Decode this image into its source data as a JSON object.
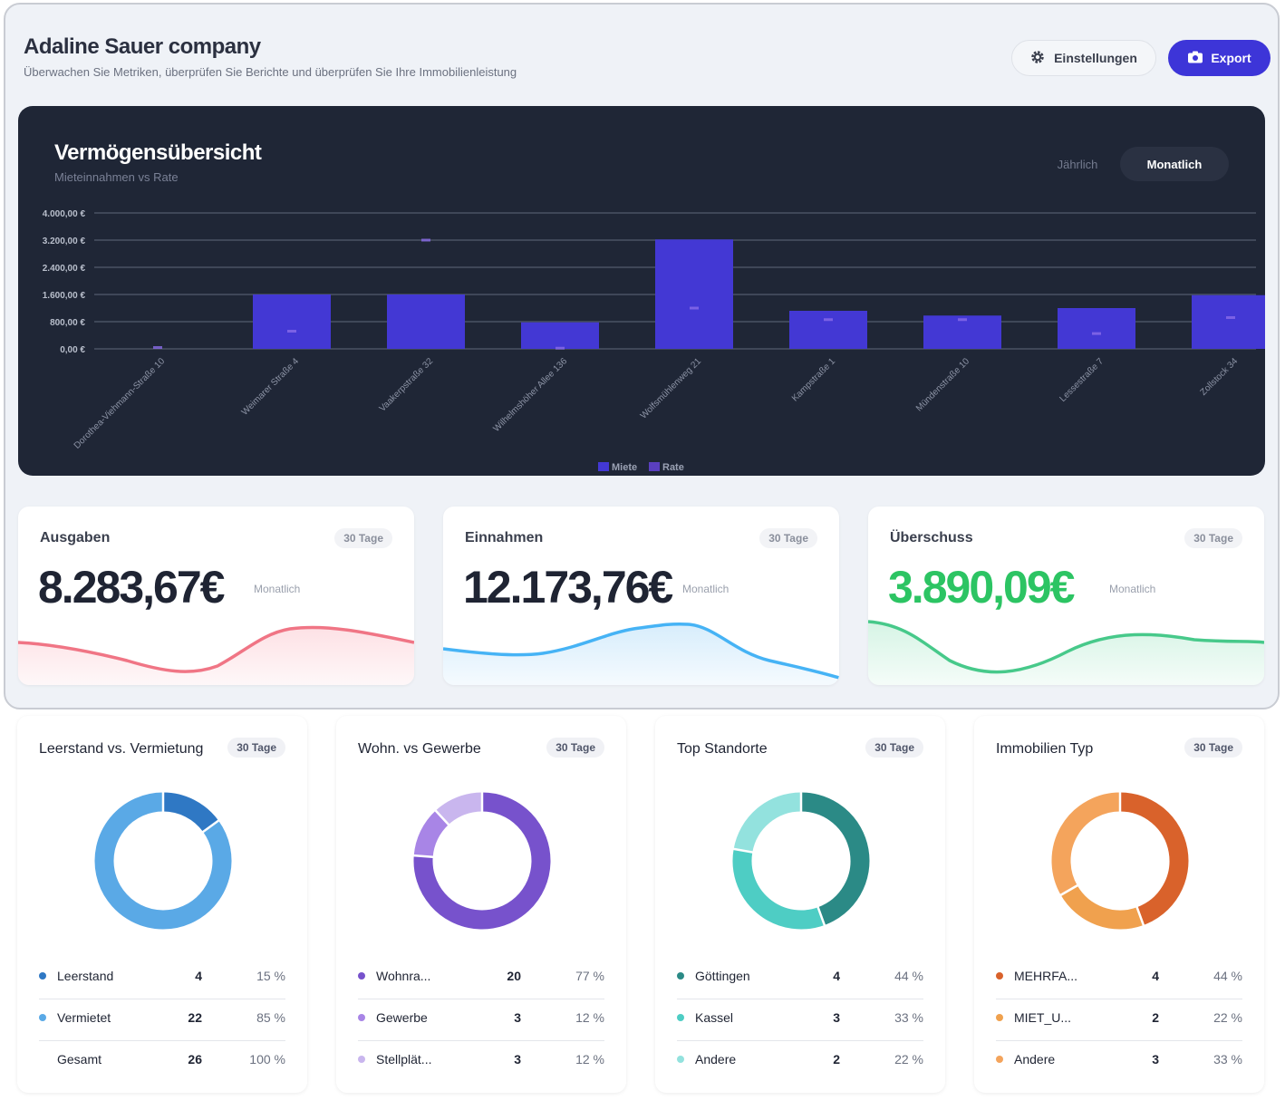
{
  "header": {
    "title": "Adaline Sauer company",
    "subtitle": "Überwachen Sie Metriken, überprüfen Sie Berichte und überprüfen Sie Ihre Immobilienleistung",
    "settings_label": "Einstellungen",
    "export_label": "Export"
  },
  "overview": {
    "title": "Vermögensübersicht",
    "subtitle": "Mieteinnahmen vs Rate",
    "tab_year": "Jährlich",
    "tab_month": "Monatlich"
  },
  "chart_data": {
    "type": "bar",
    "title": "Vermögensübersicht",
    "subtitle": "Mieteinnahmen vs Rate",
    "categories": [
      "Dorothea-Viehmann-Straße 10",
      "Weimarer Straße 4",
      "Vaakerpstraße 32",
      "Wilhelmshöher Allee 136",
      "Wolfsmühlenweg 21",
      "Kampstraße 1",
      "Mündenstraße 10",
      "Lessestraße 7",
      "Zollstock 34"
    ],
    "series": [
      {
        "name": "Miete",
        "color": "#4338d4",
        "values": [
          0,
          1600,
          1600,
          780,
          3220,
          1120,
          980,
          1200,
          1580
        ]
      },
      {
        "name": "Rate",
        "color": "#5a3fc0",
        "values": [
          40,
          520,
          3200,
          20,
          1200,
          860,
          860,
          450,
          920
        ]
      }
    ],
    "ytick_labels": [
      "0,00 €",
      "800,00 €",
      "1.600,00 €",
      "2.400,00 €",
      "3.200,00 €",
      "4.000,00 €"
    ],
    "ylim": [
      0,
      4000
    ],
    "legend": "bottom-center"
  },
  "stats": [
    {
      "label": "Ausgaben",
      "badge": "30 Tage",
      "value": "8.283,67€",
      "period": "Monatlich",
      "color": "#1f2433",
      "line_color": "#f07585",
      "fill_color": "#fde1e5"
    },
    {
      "label": "Einnahmen",
      "badge": "30 Tage",
      "value": "12.173,76€",
      "period": "Monatlich",
      "color": "#1f2433",
      "line_color": "#46b3f5",
      "fill_color": "#d7edfc"
    },
    {
      "label": "Überschuss",
      "badge": "30 Tage",
      "value": "3.890,09€",
      "period": "Monatlich",
      "color": "#2cc463",
      "line_color": "#47c98a",
      "fill_color": "#d6f4e5"
    }
  ],
  "donuts": [
    {
      "title": "Leerstand vs. Vermietung",
      "badge": "30 Tage",
      "rows": [
        {
          "name": "Leerstand",
          "count": "4",
          "pct": "15 %",
          "value": 15,
          "color": "#2f78c4"
        },
        {
          "name": "Vermietet",
          "count": "22",
          "pct": "85 %",
          "value": 85,
          "color": "#5aa9e6"
        },
        {
          "name": "Gesamt",
          "count": "26",
          "pct": "100 %",
          "value": 0,
          "color": ""
        }
      ]
    },
    {
      "title": "Wohn. vs Gewerbe",
      "badge": "30 Tage",
      "rows": [
        {
          "name": "Wohnra...",
          "count": "20",
          "pct": "77 %",
          "value": 77,
          "color": "#7752cc"
        },
        {
          "name": "Gewerbe",
          "count": "3",
          "pct": "12 %",
          "value": 12,
          "color": "#a885e6"
        },
        {
          "name": "Stellplät...",
          "count": "3",
          "pct": "12 %",
          "value": 12,
          "color": "#c9b6ee"
        }
      ]
    },
    {
      "title": "Top Standorte",
      "badge": "30 Tage",
      "rows": [
        {
          "name": "Göttingen",
          "count": "4",
          "pct": "44 %",
          "value": 44,
          "color": "#2b8a86"
        },
        {
          "name": "Kassel",
          "count": "3",
          "pct": "33 %",
          "value": 33,
          "color": "#4ecdc4"
        },
        {
          "name": "Andere",
          "count": "2",
          "pct": "22 %",
          "value": 22,
          "color": "#93e2de"
        }
      ]
    },
    {
      "title": "Immobilien Typ",
      "badge": "30 Tage",
      "rows": [
        {
          "name": "MEHRFA...",
          "count": "4",
          "pct": "44 %",
          "value": 44,
          "color": "#d9622b"
        },
        {
          "name": "MIET_U...",
          "count": "2",
          "pct": "22 %",
          "value": 22,
          "color": "#f0a14e"
        },
        {
          "name": "Andere",
          "count": "3",
          "pct": "33 %",
          "value": 33,
          "color": "#f4a45c"
        }
      ]
    }
  ]
}
